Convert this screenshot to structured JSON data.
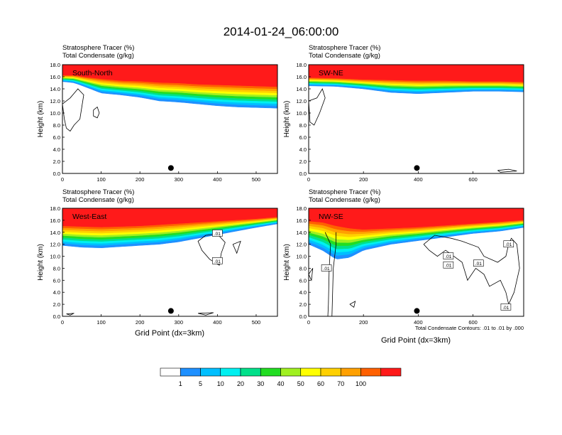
{
  "title": "2014-01-24_06:00:00",
  "contour_note": "Total Condensate Contours: .01 to .01 by .000",
  "colorbar": {
    "colors": [
      "#ffffff",
      "#1e90ff",
      "#00bfff",
      "#00f0f0",
      "#00e08a",
      "#22dd22",
      "#a0f020",
      "#ffff00",
      "#ffd000",
      "#ffa000",
      "#ff6000",
      "#ff1a1a"
    ],
    "labels": [
      "1",
      "5",
      "10",
      "20",
      "30",
      "40",
      "50",
      "60",
      "70",
      "100"
    ]
  },
  "chart_data": [
    {
      "type": "heatmap",
      "panel_label": "South-North",
      "title_line1": "Stratosphere Tracer   (%)",
      "title_line2": "Total Condensate   (g/kg)",
      "ylabel": "Height (km)",
      "xlabel": "",
      "xlim": [
        0,
        555
      ],
      "ylim": [
        0,
        18
      ],
      "x_ticks": [
        "0",
        "100",
        "200",
        "300",
        "400",
        "500"
      ],
      "y_ticks": [
        "0.0",
        "2.0",
        "4.0",
        "6.0",
        "8.0",
        "10.0",
        "12.0",
        "14.0",
        "16.0",
        "18.0"
      ],
      "marker_x": 280,
      "tracer_bands_km": {
        "x": [
          0,
          30,
          60,
          100,
          150,
          200,
          250,
          300,
          350,
          400,
          450,
          500,
          555
        ],
        "red": [
          16.2,
          16.2,
          15.9,
          15.6,
          15.3,
          15.2,
          15.0,
          14.9,
          14.7,
          14.6,
          14.5,
          14.4,
          14.3
        ],
        "base": [
          15.2,
          15.0,
          14.3,
          13.3,
          13.0,
          12.6,
          12.0,
          11.8,
          11.5,
          11.2,
          11.0,
          10.9,
          10.8
        ]
      }
    },
    {
      "type": "heatmap",
      "panel_label": "SW-NE",
      "title_line1": "Stratosphere Tracer   (%)",
      "title_line2": "Total Condensate   (g/kg)",
      "ylabel": "Height (km)",
      "xlabel": "",
      "xlim": [
        0,
        785
      ],
      "ylim": [
        0,
        18
      ],
      "x_ticks": [
        "0",
        "200",
        "400",
        "600"
      ],
      "y_ticks": [
        "0.0",
        "2.0",
        "4.0",
        "6.0",
        "8.0",
        "10.0",
        "12.0",
        "14.0",
        "16.0",
        "18.0"
      ],
      "marker_x": 395,
      "tracer_bands_km": {
        "x": [
          0,
          100,
          200,
          300,
          400,
          500,
          600,
          700,
          785
        ],
        "red": [
          15.8,
          15.7,
          15.5,
          15.4,
          15.3,
          15.3,
          15.2,
          15.2,
          15.1
        ],
        "base": [
          14.5,
          14.4,
          14.0,
          13.4,
          13.2,
          13.4,
          13.6,
          13.6,
          13.5
        ]
      }
    },
    {
      "type": "heatmap",
      "panel_label": "West-East",
      "title_line1": "Stratosphere Tracer   (%)",
      "title_line2": "Total Condensate   (g/kg)",
      "ylabel": "Height (km)",
      "xlabel": "Grid Point (dx=3km)",
      "xlim": [
        0,
        555
      ],
      "ylim": [
        0,
        18
      ],
      "x_ticks": [
        "0",
        "100",
        "200",
        "300",
        "400",
        "500"
      ],
      "y_ticks": [
        "0.0",
        "2.0",
        "4.0",
        "6.0",
        "8.0",
        "10.0",
        "12.0",
        "14.0",
        "16.0",
        "18.0"
      ],
      "marker_x": 280,
      "contour_labels": [
        ".01",
        ".01"
      ],
      "tracer_bands_km": {
        "x": [
          0,
          50,
          100,
          150,
          200,
          250,
          300,
          350,
          400,
          450,
          500,
          555
        ],
        "red": [
          15.0,
          14.9,
          14.8,
          14.9,
          15.0,
          15.2,
          15.4,
          15.6,
          15.8,
          16.0,
          16.2,
          16.5
        ],
        "base": [
          11.8,
          11.5,
          11.4,
          11.6,
          11.8,
          12.0,
          12.4,
          13.0,
          13.6,
          14.2,
          14.8,
          15.4
        ]
      }
    },
    {
      "type": "heatmap",
      "panel_label": "NW-SE",
      "title_line1": "Stratosphere Tracer   (%)",
      "title_line2": "Total Condensate   (g/kg)",
      "ylabel": "Height (km)",
      "xlabel": "Grid Point (dx=3km)",
      "xlim": [
        0,
        785
      ],
      "ylim": [
        0,
        18
      ],
      "x_ticks": [
        "0",
        "200",
        "400",
        "600"
      ],
      "y_ticks": [
        "0.0",
        "2.0",
        "4.0",
        "6.0",
        "8.0",
        "10.0",
        "12.0",
        "14.0",
        "16.0",
        "18.0"
      ],
      "marker_x": 395,
      "contour_labels": [
        ".01",
        ".01",
        ".01",
        ".01",
        ".01",
        ".01"
      ],
      "tracer_bands_km": {
        "x": [
          0,
          50,
          100,
          150,
          200,
          300,
          400,
          500,
          600,
          700,
          785
        ],
        "red": [
          15.8,
          15.6,
          15.0,
          14.6,
          14.4,
          14.6,
          14.8,
          15.1,
          15.4,
          15.7,
          16.0
        ],
        "base": [
          12.0,
          11.0,
          9.5,
          9.8,
          11.0,
          12.0,
          12.6,
          13.2,
          13.8,
          14.2,
          14.8
        ]
      }
    }
  ]
}
